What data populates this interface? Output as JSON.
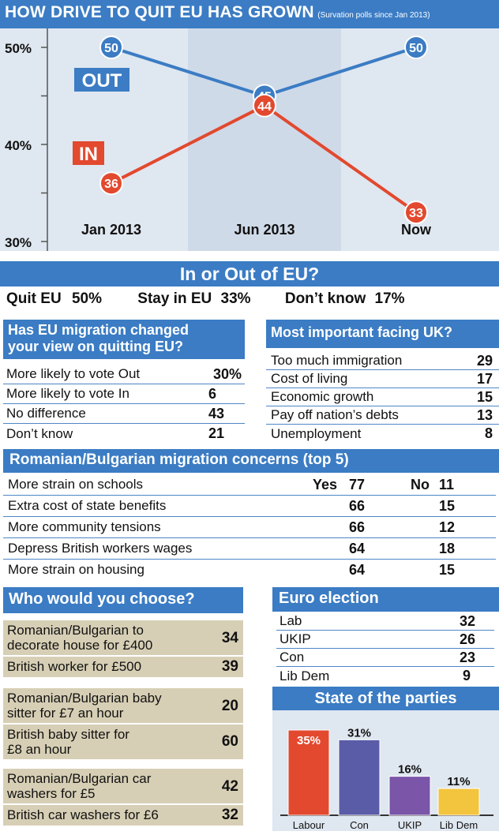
{
  "title": "HOW DRIVE TO QUIT EU HAS GROWN",
  "subtitle": "(Survation polls since Jan 2013)",
  "chart_data": [
    {
      "type": "line",
      "x": [
        "Jan 2013",
        "Jun 2013",
        "Now"
      ],
      "series": [
        {
          "name": "OUT",
          "values": [
            50,
            45,
            50
          ]
        },
        {
          "name": "IN",
          "values": [
            36,
            44,
            33
          ]
        }
      ],
      "yticks": [
        "50%",
        "40%",
        "30%"
      ],
      "ylim": [
        30,
        50
      ],
      "colors": {
        "OUT": "#3b7cc4",
        "IN": "#e2492f"
      },
      "grid": true
    },
    {
      "type": "bar",
      "title": "State of the parties",
      "categories": [
        "Labour",
        "Con",
        "UKIP",
        "Lib Dem"
      ],
      "values": [
        35,
        31,
        16,
        11
      ],
      "value_labels": [
        "35%",
        "31%",
        "16%",
        "11%"
      ],
      "colors": [
        "#e2492f",
        "#5a5ca8",
        "#7a55a8",
        "#f3c43d"
      ]
    }
  ],
  "inout": {
    "heading": "In or Out of EU?",
    "quit_label": "Quit EU",
    "quit_value": "50%",
    "stay_label": "Stay in EU",
    "stay_value": "33%",
    "dk_label": "Don’t know",
    "dk_value": "17%"
  },
  "migration_view": {
    "heading_line1": "Has EU migration changed",
    "heading_line2": "your view on quitting EU?",
    "rows": [
      {
        "label": "More likely to vote Out",
        "value": "30%"
      },
      {
        "label": "More likely to vote In",
        "value": "6"
      },
      {
        "label": "No difference",
        "value": "43"
      },
      {
        "label": "Don’t know",
        "value": "21"
      }
    ]
  },
  "important": {
    "heading": "Most important facing UK?",
    "rows": [
      {
        "label": "Too much immigration",
        "value": "29"
      },
      {
        "label": "Cost of living",
        "value": "17"
      },
      {
        "label": "Economic growth",
        "value": "15"
      },
      {
        "label": "Pay off nation’s debts",
        "value": "13"
      },
      {
        "label": "Unemployment",
        "value": "8"
      }
    ]
  },
  "concerns": {
    "heading": "Romanian/Bulgarian migration concerns (top 5)",
    "yes_label": "Yes",
    "no_label": "No",
    "rows": [
      {
        "label": "More strain on schools",
        "yes": "77",
        "no": "11"
      },
      {
        "label": "Extra cost of state benefits",
        "yes": "66",
        "no": "15"
      },
      {
        "label": "More community tensions",
        "yes": "66",
        "no": "12"
      },
      {
        "label": "Depress British workers wages",
        "yes": "64",
        "no": "18"
      },
      {
        "label": "More strain on housing",
        "yes": "64",
        "no": "15"
      }
    ]
  },
  "choose": {
    "heading": "Who would you choose?",
    "groups": [
      {
        "a_line1": "Romanian/Bulgarian to",
        "a_line2": "decorate house for £400",
        "a_value": "34",
        "b_line1": "British worker for £500",
        "b_line2": "",
        "b_value": "39"
      },
      {
        "a_line1": "Romanian/Bulgarian baby",
        "a_line2": "sitter for £7 an hour",
        "a_value": "20",
        "b_line1": "British baby sitter for",
        "b_line2": "£8 an hour",
        "b_value": "60"
      },
      {
        "a_line1": "Romanian/Bulgarian car",
        "a_line2": "washers for £5",
        "a_value": "42",
        "b_line1": "British car washers for £6",
        "b_line2": "",
        "b_value": "32"
      }
    ]
  },
  "euro": {
    "heading": "Euro election",
    "rows": [
      {
        "label": "Lab",
        "value": "32"
      },
      {
        "label": "UKIP",
        "value": "26"
      },
      {
        "label": "Con",
        "value": "23"
      },
      {
        "label": "Lib Dem",
        "value": "9"
      }
    ]
  }
}
